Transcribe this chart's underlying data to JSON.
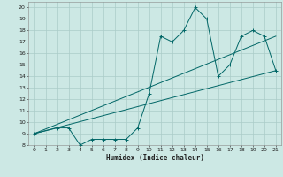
{
  "xlabel": "Humidex (Indice chaleur)",
  "bg_color": "#cce8e4",
  "grid_color": "#aaccc8",
  "line_color": "#006666",
  "xlim": [
    -0.5,
    21.5
  ],
  "ylim": [
    8,
    20.5
  ],
  "xticks": [
    0,
    1,
    2,
    3,
    4,
    5,
    6,
    7,
    8,
    9,
    10,
    11,
    12,
    13,
    14,
    15,
    16,
    17,
    18,
    19,
    20,
    21
  ],
  "yticks": [
    8,
    9,
    10,
    11,
    12,
    13,
    14,
    15,
    16,
    17,
    18,
    19,
    20
  ],
  "line1_x": [
    0,
    2,
    3,
    4,
    5,
    6,
    7,
    8,
    9,
    10,
    11,
    12,
    13,
    14,
    15,
    16,
    17,
    18,
    19,
    20,
    21
  ],
  "line1_y": [
    9,
    9.5,
    9.5,
    8,
    8.5,
    8.5,
    8.5,
    8.5,
    9.5,
    12.5,
    17.5,
    17,
    18,
    20,
    19,
    14,
    15,
    17.5,
    18,
    17.5,
    14.5
  ],
  "line2_x": [
    0,
    21
  ],
  "line2_y": [
    9,
    17.5
  ],
  "line3_x": [
    0,
    21
  ],
  "line3_y": [
    9,
    14.5
  ]
}
